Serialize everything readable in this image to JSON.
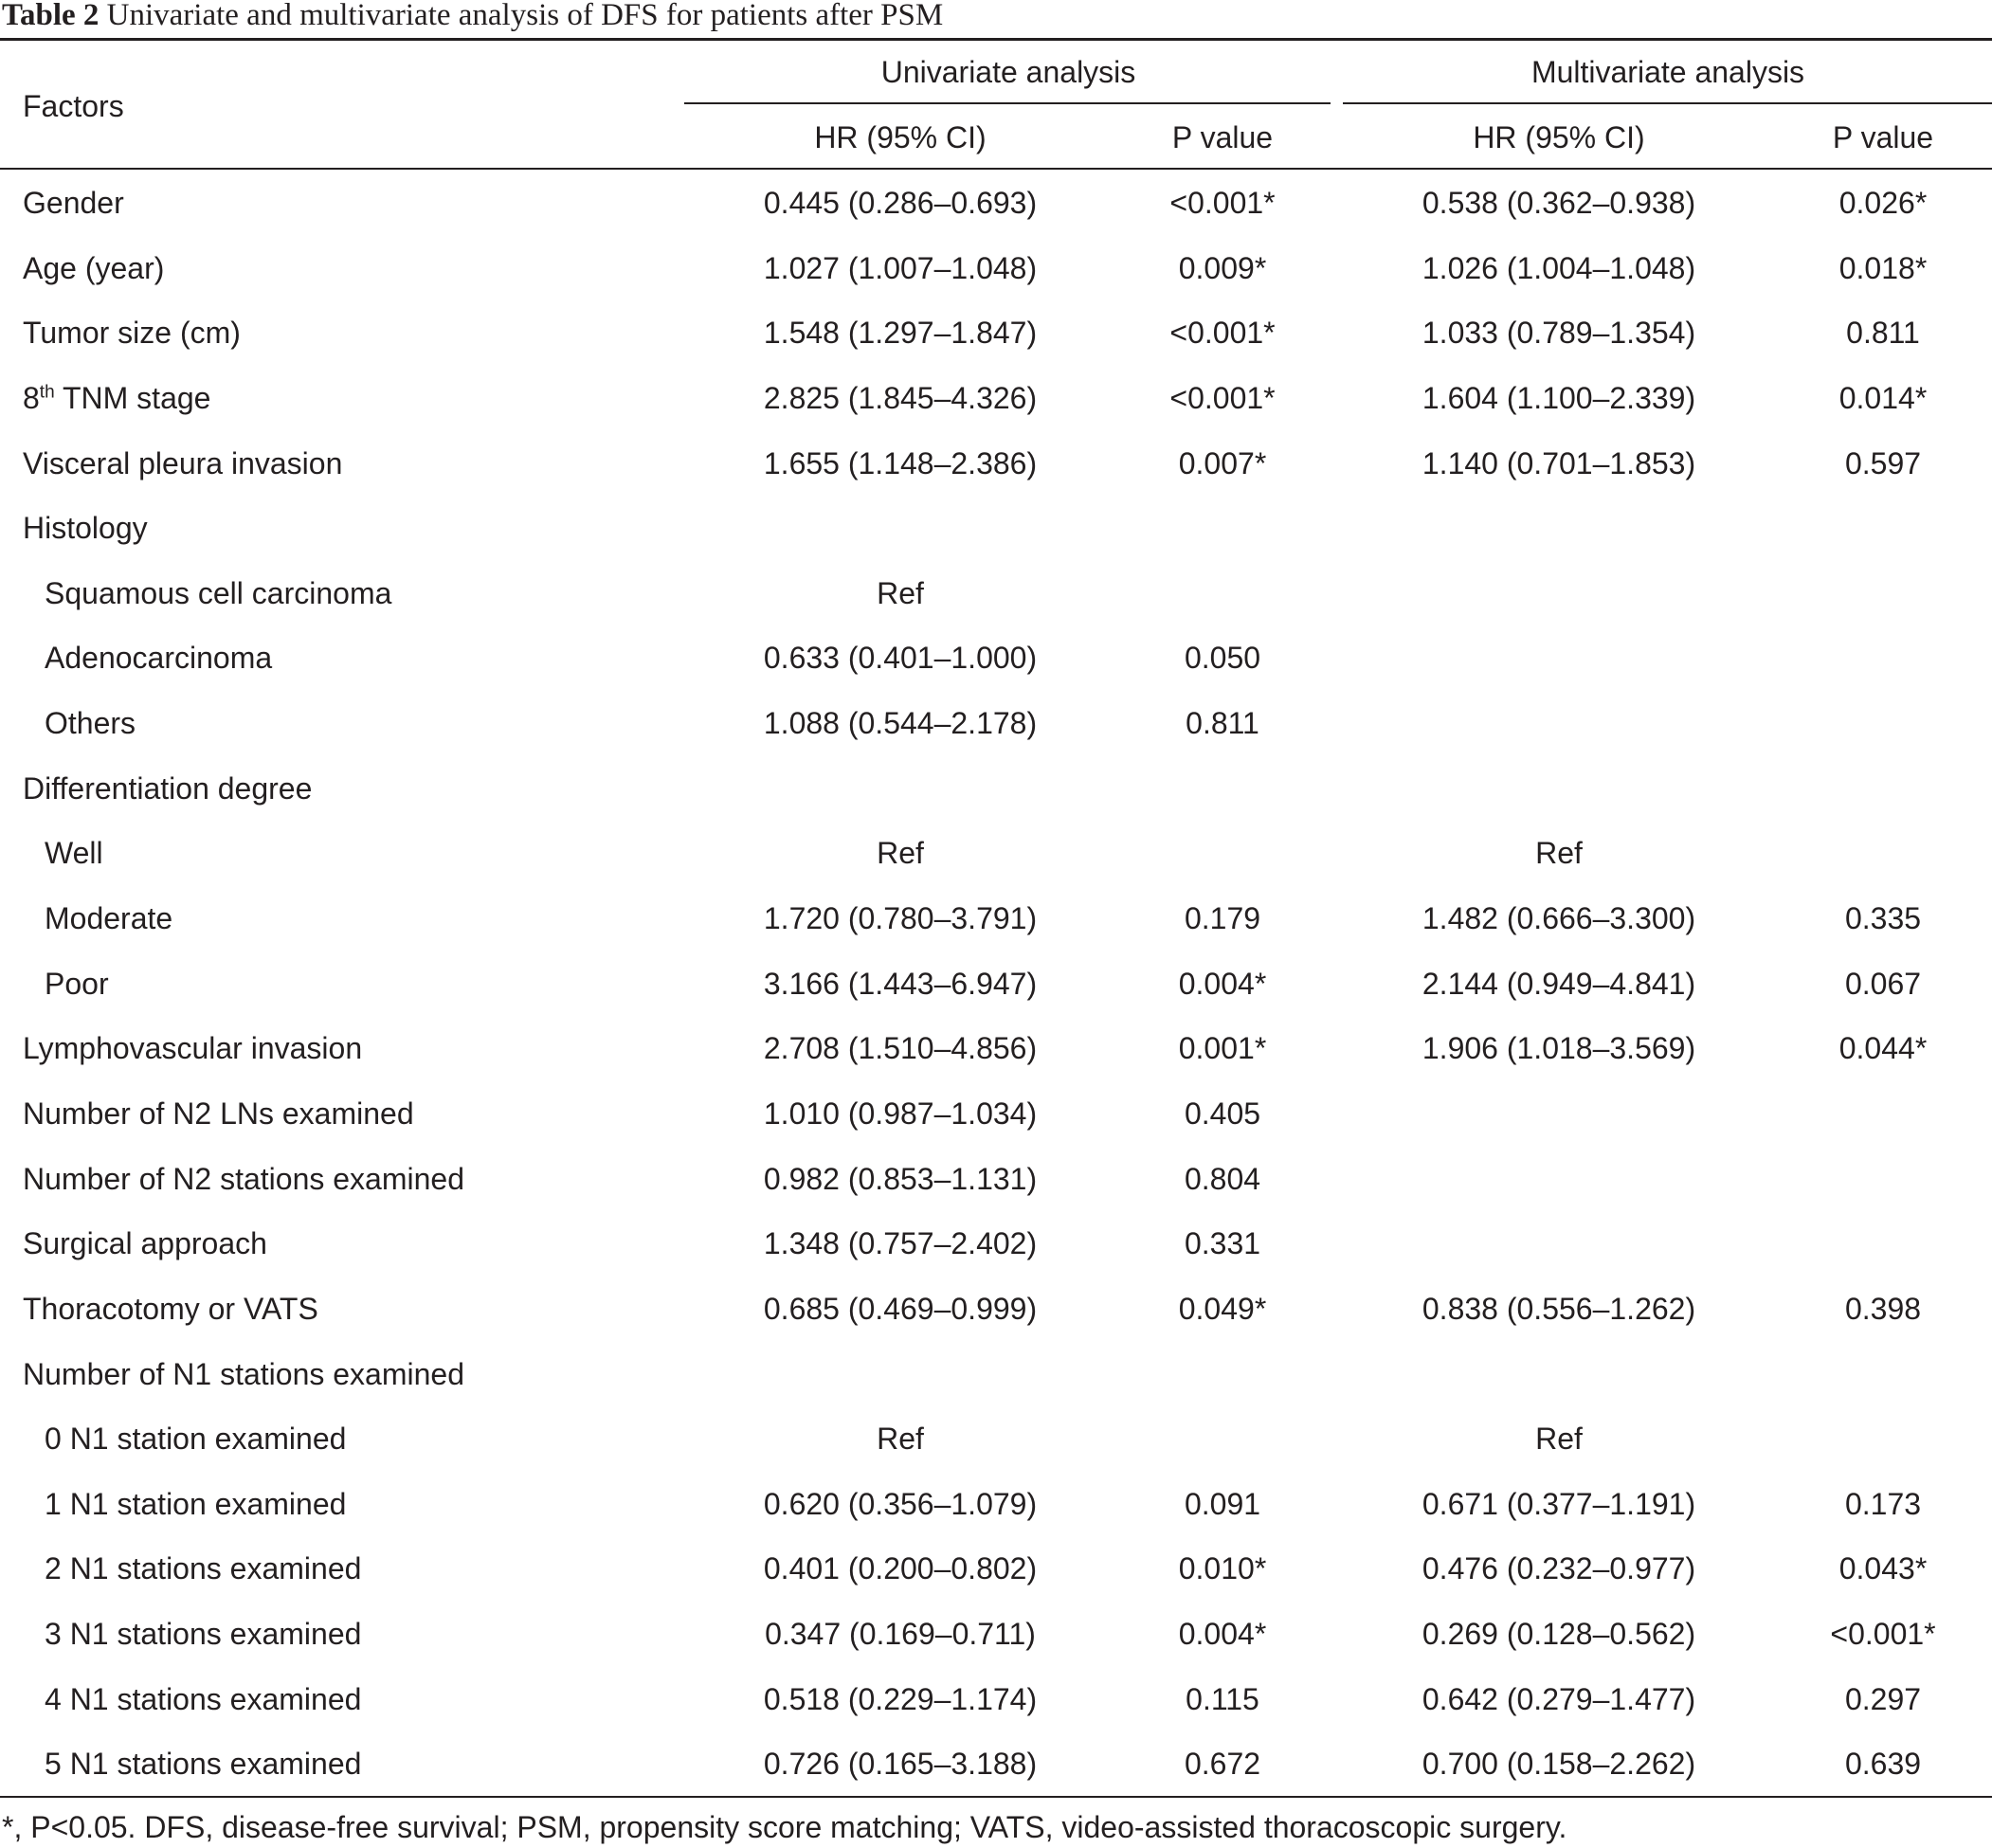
{
  "caption": {
    "label": "Table 2",
    "text": "Univariate and multivariate analysis of DFS for patients after PSM"
  },
  "header": {
    "factors": "Factors",
    "univariate": "Univariate analysis",
    "multivariate": "Multivariate analysis",
    "hr": "HR (95% CI)",
    "p": "P value"
  },
  "rows": [
    {
      "factor": "Gender",
      "indent": false,
      "u_hr": "0.445 (0.286–0.693)",
      "u_p": "<0.001*",
      "m_hr": "0.538 (0.362–0.938)",
      "m_p": "0.026*"
    },
    {
      "factor": "Age (year)",
      "indent": false,
      "u_hr": "1.027 (1.007–1.048)",
      "u_p": "0.009*",
      "m_hr": "1.026 (1.004–1.048)",
      "m_p": "0.018*"
    },
    {
      "factor": "Tumor size (cm)",
      "indent": false,
      "u_hr": "1.548 (1.297–1.847)",
      "u_p": "<0.001*",
      "m_hr": "1.033 (0.789–1.354)",
      "m_p": "0.811"
    },
    {
      "factor": "8",
      "sup": "th",
      "factor_rest": " TNM stage",
      "indent": false,
      "u_hr": "2.825 (1.845–4.326)",
      "u_p": "<0.001*",
      "m_hr": "1.604 (1.100–2.339)",
      "m_p": "0.014*"
    },
    {
      "factor": "Visceral pleura invasion",
      "indent": false,
      "u_hr": "1.655 (1.148–2.386)",
      "u_p": "0.007*",
      "m_hr": "1.140 (0.701–1.853)",
      "m_p": "0.597"
    },
    {
      "factor": "Histology",
      "indent": false,
      "u_hr": "",
      "u_p": "",
      "m_hr": "",
      "m_p": ""
    },
    {
      "factor": "Squamous cell carcinoma",
      "indent": true,
      "u_hr": "Ref",
      "u_p": "",
      "m_hr": "",
      "m_p": ""
    },
    {
      "factor": "Adenocarcinoma",
      "indent": true,
      "u_hr": "0.633 (0.401–1.000)",
      "u_p": "0.050",
      "m_hr": "",
      "m_p": ""
    },
    {
      "factor": "Others",
      "indent": true,
      "u_hr": "1.088 (0.544–2.178)",
      "u_p": "0.811",
      "m_hr": "",
      "m_p": ""
    },
    {
      "factor": "Differentiation degree",
      "indent": false,
      "u_hr": "",
      "u_p": "",
      "m_hr": "",
      "m_p": ""
    },
    {
      "factor": "Well",
      "indent": true,
      "u_hr": "Ref",
      "u_p": "",
      "m_hr": "Ref",
      "m_p": ""
    },
    {
      "factor": "Moderate",
      "indent": true,
      "u_hr": "1.720 (0.780–3.791)",
      "u_p": "0.179",
      "m_hr": "1.482 (0.666–3.300)",
      "m_p": "0.335"
    },
    {
      "factor": "Poor",
      "indent": true,
      "u_hr": "3.166 (1.443–6.947)",
      "u_p": "0.004*",
      "m_hr": "2.144 (0.949–4.841)",
      "m_p": "0.067"
    },
    {
      "factor": "Lymphovascular invasion",
      "indent": false,
      "u_hr": "2.708 (1.510–4.856)",
      "u_p": "0.001*",
      "m_hr": "1.906 (1.018–3.569)",
      "m_p": "0.044*"
    },
    {
      "factor": "Number of N2 LNs examined",
      "indent": false,
      "u_hr": "1.010 (0.987–1.034)",
      "u_p": "0.405",
      "m_hr": "",
      "m_p": ""
    },
    {
      "factor": "Number of N2 stations examined",
      "indent": false,
      "u_hr": "0.982 (0.853–1.131)",
      "u_p": "0.804",
      "m_hr": "",
      "m_p": ""
    },
    {
      "factor": "Surgical approach",
      "indent": false,
      "u_hr": "1.348 (0.757–2.402)",
      "u_p": "0.331",
      "m_hr": "",
      "m_p": ""
    },
    {
      "factor": "Thoracotomy or VATS",
      "indent": false,
      "u_hr": "0.685 (0.469–0.999)",
      "u_p": "0.049*",
      "m_hr": "0.838 (0.556–1.262)",
      "m_p": "0.398"
    },
    {
      "factor": "Number of N1 stations examined",
      "indent": false,
      "u_hr": "",
      "u_p": "",
      "m_hr": "",
      "m_p": ""
    },
    {
      "factor": "0 N1 station examined",
      "indent": true,
      "u_hr": "Ref",
      "u_p": "",
      "m_hr": "Ref",
      "m_p": ""
    },
    {
      "factor": "1 N1 station examined",
      "indent": true,
      "u_hr": "0.620 (0.356–1.079)",
      "u_p": "0.091",
      "m_hr": "0.671 (0.377–1.191)",
      "m_p": "0.173"
    },
    {
      "factor": "2 N1 stations examined",
      "indent": true,
      "u_hr": "0.401 (0.200–0.802)",
      "u_p": "0.010*",
      "m_hr": "0.476 (0.232–0.977)",
      "m_p": "0.043*"
    },
    {
      "factor": "3 N1 stations examined",
      "indent": true,
      "u_hr": "0.347 (0.169–0.711)",
      "u_p": "0.004*",
      "m_hr": "0.269 (0.128–0.562)",
      "m_p": "<0.001*"
    },
    {
      "factor": "4 N1 stations examined",
      "indent": true,
      "u_hr": "0.518 (0.229–1.174)",
      "u_p": "0.115",
      "m_hr": "0.642 (0.279–1.477)",
      "m_p": "0.297"
    },
    {
      "factor": "5 N1 stations examined",
      "indent": true,
      "u_hr": "0.726 (0.165–3.188)",
      "u_p": "0.672",
      "m_hr": "0.700 (0.158–2.262)",
      "m_p": "0.639"
    }
  ],
  "footnote": "*, P<0.05. DFS, disease-free survival; PSM, propensity score matching; VATS, video-assisted thoracoscopic surgery."
}
